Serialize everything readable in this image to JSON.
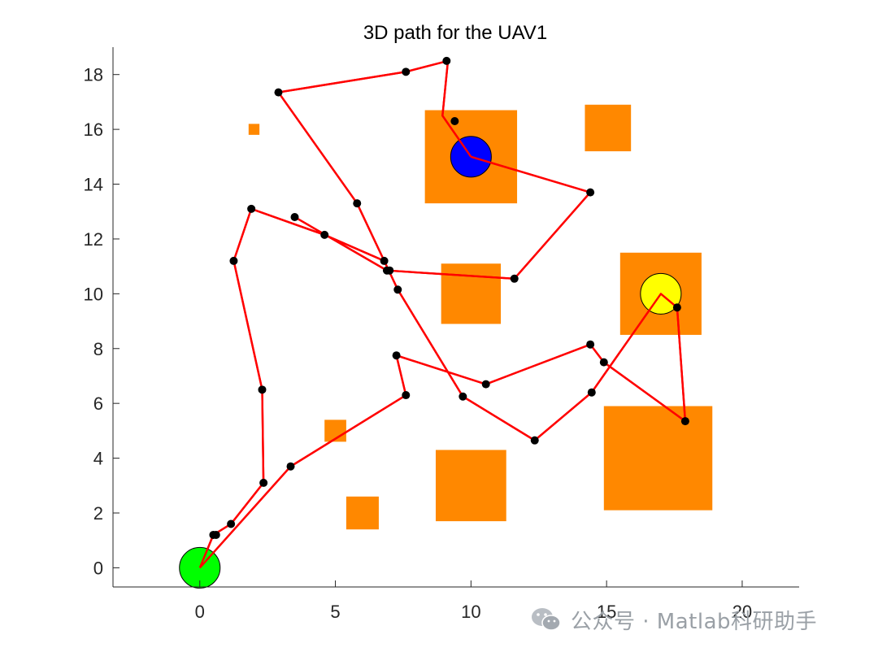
{
  "chart_data": {
    "type": "scatter",
    "title": "3D path for the UAV1",
    "xlabel": "",
    "ylabel": "",
    "xlim": [
      -3.2,
      22.1
    ],
    "ylim": [
      -0.7,
      19.0
    ],
    "xticks": [
      0,
      5,
      10,
      15,
      20
    ],
    "yticks": [
      0,
      2,
      4,
      6,
      8,
      10,
      12,
      14,
      16,
      18
    ],
    "grid": false,
    "obstacles": [
      {
        "x": [
          1.8,
          2.2
        ],
        "y": [
          15.8,
          16.2
        ]
      },
      {
        "x": [
          8.3,
          11.7
        ],
        "y": [
          13.3,
          16.7
        ]
      },
      {
        "x": [
          14.2,
          15.9
        ],
        "y": [
          15.2,
          16.9
        ]
      },
      {
        "x": [
          8.9,
          11.1
        ],
        "y": [
          8.9,
          11.1
        ]
      },
      {
        "x": [
          15.5,
          18.5
        ],
        "y": [
          8.5,
          11.5
        ]
      },
      {
        "x": [
          14.9,
          18.9
        ],
        "y": [
          2.1,
          5.9
        ]
      },
      {
        "x": [
          4.6,
          5.4
        ],
        "y": [
          4.6,
          5.4
        ]
      },
      {
        "x": [
          8.7,
          11.3
        ],
        "y": [
          1.7,
          4.3
        ]
      },
      {
        "x": [
          5.4,
          6.6
        ],
        "y": [
          1.4,
          2.6
        ]
      }
    ],
    "circles": [
      {
        "name": "start",
        "x": 0,
        "y": 0,
        "r": 0.75,
        "color": "#00ff00"
      },
      {
        "name": "waypoint",
        "x": 10,
        "y": 15,
        "r": 0.75,
        "color": "#0000ff"
      },
      {
        "name": "goal",
        "x": 17,
        "y": 10,
        "r": 0.75,
        "color": "#ffff00"
      }
    ],
    "series": [
      {
        "x": [
          0,
          0.5,
          1.15,
          2.35,
          2.3,
          1.25,
          1.9,
          4.6,
          6.8,
          7.3,
          9.7,
          12.35,
          14.45,
          17,
          17.6,
          17.9,
          14.9,
          14.4,
          10.55,
          7.25,
          7.6,
          3.35,
          0,
          0.2,
          0.4,
          0.6,
          10,
          14.4,
          9.4,
          9.1,
          7.6,
          2.9,
          5.8,
          7.0,
          11.6,
          6.9,
          3.5
        ],
        "y": [
          0,
          1.2,
          1.6,
          3.1,
          6.5,
          11.2,
          13.1,
          12.15,
          11.2,
          10.15,
          6.25,
          4.65,
          6.4,
          10,
          9.5,
          5.35,
          7.5,
          8.15,
          6.7,
          7.75,
          6.3,
          3.7,
          0,
          0.4,
          0.8,
          1.2,
          15,
          13.7,
          16.3,
          18.5,
          18.1,
          17.35,
          13.3,
          10.85,
          10.55,
          10.85,
          12.8
        ]
      }
    ],
    "path_order": [
      [
        0,
        0
      ],
      [
        0.5,
        1.2
      ],
      [
        1.15,
        1.6
      ],
      [
        2.35,
        3.1
      ],
      [
        2.3,
        6.5
      ],
      [
        1.25,
        11.2
      ],
      [
        1.9,
        13.1
      ],
      [
        4.6,
        12.15
      ],
      [
        6.8,
        11.2
      ],
      [
        7.3,
        10.15
      ],
      [
        9.7,
        6.25
      ],
      [
        12.35,
        4.65
      ],
      [
        14.45,
        6.4
      ],
      [
        17,
        10
      ],
      [
        17.6,
        9.5
      ],
      [
        17.9,
        5.35
      ],
      [
        14.9,
        7.5
      ],
      [
        14.4,
        8.15
      ],
      [
        10.55,
        6.7
      ],
      [
        7.25,
        7.75
      ],
      [
        7.6,
        6.3
      ],
      [
        3.35,
        3.7
      ],
      [
        0,
        0
      ]
    ],
    "path_order_2": [
      [
        10,
        15
      ],
      [
        14.4,
        13.7
      ],
      [
        11.6,
        10.55
      ],
      [
        6.9,
        10.85
      ],
      [
        3.5,
        12.8
      ]
    ],
    "path_order_3": [
      [
        10,
        15
      ],
      [
        8.95,
        16.5
      ],
      [
        9.15,
        18.5
      ],
      [
        7.6,
        18.1
      ],
      [
        2.9,
        17.35
      ],
      [
        5.8,
        13.3
      ],
      [
        6.8,
        11.2
      ]
    ],
    "colors": {
      "path": "#ff0000",
      "point": "#000000",
      "obstacle": "#ff8800",
      "axis": "#262626"
    }
  },
  "watermark": {
    "icon": "wechat-icon",
    "text": "公众号 · Matlab科研助手"
  }
}
